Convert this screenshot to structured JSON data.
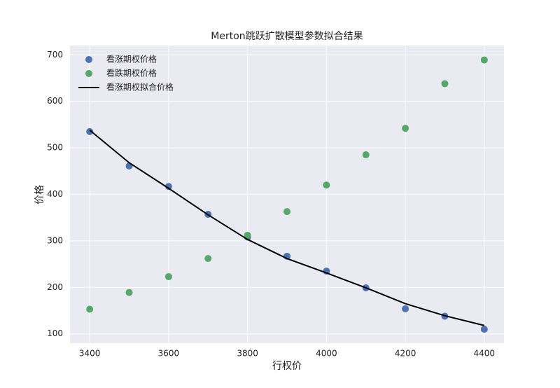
{
  "chart_data": {
    "type": "scatter",
    "title": "Merton跳跃扩散模型参数拟合结果",
    "x_label": "行权价",
    "y_label": "价格",
    "x": [
      3400,
      3500,
      3600,
      3700,
      3800,
      3900,
      4000,
      4100,
      4200,
      4300,
      4400
    ],
    "series": [
      {
        "name": "看涨期权价格",
        "color": "#4c72b0",
        "mode": "markers",
        "values": [
          535,
          461,
          417,
          357,
          308,
          267,
          235,
          199,
          154,
          138,
          110
        ]
      },
      {
        "name": "看跌期权价格",
        "color": "#55a868",
        "mode": "markers",
        "values": [
          153,
          189,
          223,
          262,
          312,
          363,
          420,
          485,
          542,
          638,
          689
        ]
      },
      {
        "name": "看涨期权拟合价格",
        "color": "#000000",
        "mode": "line",
        "values": [
          538,
          468,
          413,
          356,
          303,
          262,
          231,
          199,
          165,
          139,
          118
        ]
      }
    ],
    "xlim": [
      3350,
      4450
    ],
    "ylim": [
      80,
      720
    ],
    "xticks": [
      3400,
      3600,
      3800,
      4000,
      4200,
      4400
    ],
    "yticks": [
      100,
      200,
      300,
      400,
      500,
      600,
      700
    ],
    "grid": true,
    "legend": "upper-left"
  }
}
